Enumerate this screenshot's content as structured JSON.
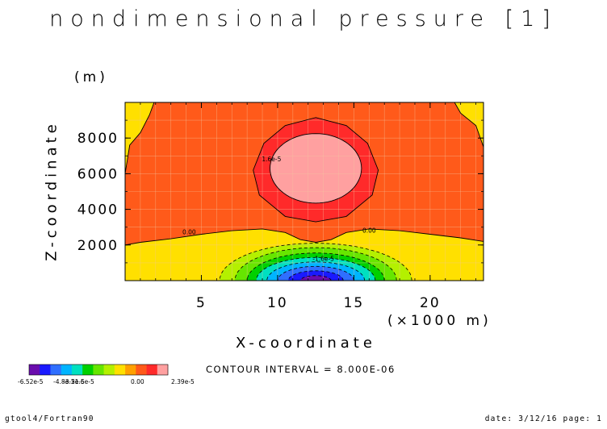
{
  "title": "nondimensional pressure [1]",
  "contour_interval": "CONTOUR INTERVAL = 8.000E-06",
  "footer": {
    "left": "gtool4/Fortran90",
    "right": "date: 3/12/16 page: 1"
  },
  "colors": {
    "levels": [
      "#6a0dad",
      "#1a1aff",
      "#2f6fff",
      "#00b4ff",
      "#00e0c0",
      "#00d000",
      "#66e600",
      "#b4f000",
      "#ffe000",
      "#ffa000",
      "#ff5a1a",
      "#ff2a2a",
      "#ffa0a0"
    ],
    "grid": "#f3c6a0"
  },
  "chart_data": {
    "type": "contour",
    "title": "nondimensional pressure [1]",
    "xlabel": "X-coordinate",
    "x_unit": "(×1000 m)",
    "ylabel": "Z-coordinate",
    "y_unit": "(m)",
    "xlim": [
      0,
      23.5
    ],
    "ylim": [
      0,
      10000
    ],
    "x_ticks": [
      5,
      10,
      15,
      20
    ],
    "y_ticks": [
      2000,
      4000,
      6000,
      8000
    ],
    "contour_labels": [
      {
        "text": "0.00",
        "x": 4.2,
        "y": 2600
      },
      {
        "text": "0.00",
        "x": 16.0,
        "y": 2700
      },
      {
        "text": "1.6e-5",
        "x": 9.6,
        "y": 6700
      },
      {
        "text": "-1.6e-5",
        "x": 13.0,
        "y": 1100
      }
    ],
    "field": {
      "min": -6.52e-05,
      "max": 2.39e-05,
      "description_points": [
        {
          "x": 12.5,
          "z": 6500,
          "value": 2.39e-05
        },
        {
          "x": 12.5,
          "z": 0,
          "value": -6.52e-05
        }
      ]
    },
    "colorbar": {
      "tick_labels": [
        "-6.52e-5",
        "-4.8e-5",
        "-3.2e-5",
        "-1.6e-5",
        "0.00",
        "2.39e-5"
      ]
    },
    "grid": true
  }
}
